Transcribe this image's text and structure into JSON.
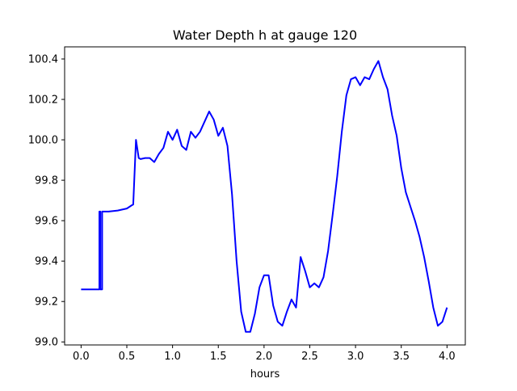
{
  "chart_data": {
    "type": "line",
    "title": "Water Depth h at gauge 120",
    "xlabel": "hours",
    "ylabel": "",
    "xlim": [
      -0.18,
      4.2
    ],
    "ylim": [
      98.985,
      100.46
    ],
    "xticks": [
      0.0,
      0.5,
      1.0,
      1.5,
      2.0,
      2.5,
      3.0,
      3.5,
      4.0
    ],
    "xtick_labels": [
      "0.0",
      "0.5",
      "1.0",
      "1.5",
      "2.0",
      "2.5",
      "3.0",
      "3.5",
      "4.0"
    ],
    "yticks": [
      99.0,
      99.2,
      99.4,
      99.6,
      99.8,
      100.0,
      100.2,
      100.4
    ],
    "ytick_labels": [
      "99.0",
      "99.2",
      "99.4",
      "99.6",
      "99.8",
      "100.0",
      "100.2",
      "100.4"
    ],
    "grid": false,
    "legend": "none",
    "series": [
      {
        "color": "#0000ff",
        "x": [
          0.0,
          0.2,
          0.2,
          0.21,
          0.21,
          0.23,
          0.23,
          0.26,
          0.26,
          0.3,
          0.4,
          0.5,
          0.55,
          0.57,
          0.6,
          0.63,
          0.65,
          0.7,
          0.75,
          0.8,
          0.85,
          0.9,
          0.95,
          1.0,
          1.05,
          1.1,
          1.15,
          1.2,
          1.25,
          1.3,
          1.35,
          1.4,
          1.45,
          1.5,
          1.55,
          1.6,
          1.65,
          1.7,
          1.75,
          1.8,
          1.85,
          1.9,
          1.95,
          2.0,
          2.05,
          2.1,
          2.15,
          2.2,
          2.25,
          2.3,
          2.35,
          2.4,
          2.45,
          2.5,
          2.55,
          2.6,
          2.65,
          2.7,
          2.75,
          2.8,
          2.85,
          2.9,
          2.95,
          3.0,
          3.05,
          3.1,
          3.15,
          3.2,
          3.25,
          3.3,
          3.35,
          3.4,
          3.45,
          3.5,
          3.55,
          3.6,
          3.65,
          3.7,
          3.75,
          3.8,
          3.85,
          3.9,
          3.95,
          4.0
        ],
        "values": [
          99.26,
          99.26,
          99.645,
          99.645,
          99.26,
          99.26,
          99.645,
          99.645,
          99.645,
          99.645,
          99.65,
          99.66,
          99.675,
          99.68,
          100.0,
          99.91,
          99.905,
          99.91,
          99.91,
          99.89,
          99.93,
          99.96,
          100.04,
          100.0,
          100.05,
          99.97,
          99.95,
          100.04,
          100.01,
          100.04,
          100.09,
          100.14,
          100.1,
          100.02,
          100.06,
          99.97,
          99.73,
          99.4,
          99.15,
          99.05,
          99.05,
          99.14,
          99.27,
          99.33,
          99.33,
          99.18,
          99.1,
          99.08,
          99.15,
          99.21,
          99.17,
          99.42,
          99.35,
          99.27,
          99.29,
          99.27,
          99.32,
          99.45,
          99.63,
          99.82,
          100.04,
          100.22,
          100.3,
          100.31,
          100.27,
          100.31,
          100.3,
          100.35,
          100.39,
          100.31,
          100.25,
          100.12,
          100.02,
          99.86,
          99.74,
          99.67,
          99.6,
          99.52,
          99.42,
          99.3,
          99.17,
          99.08,
          99.1,
          99.17
        ]
      }
    ]
  }
}
